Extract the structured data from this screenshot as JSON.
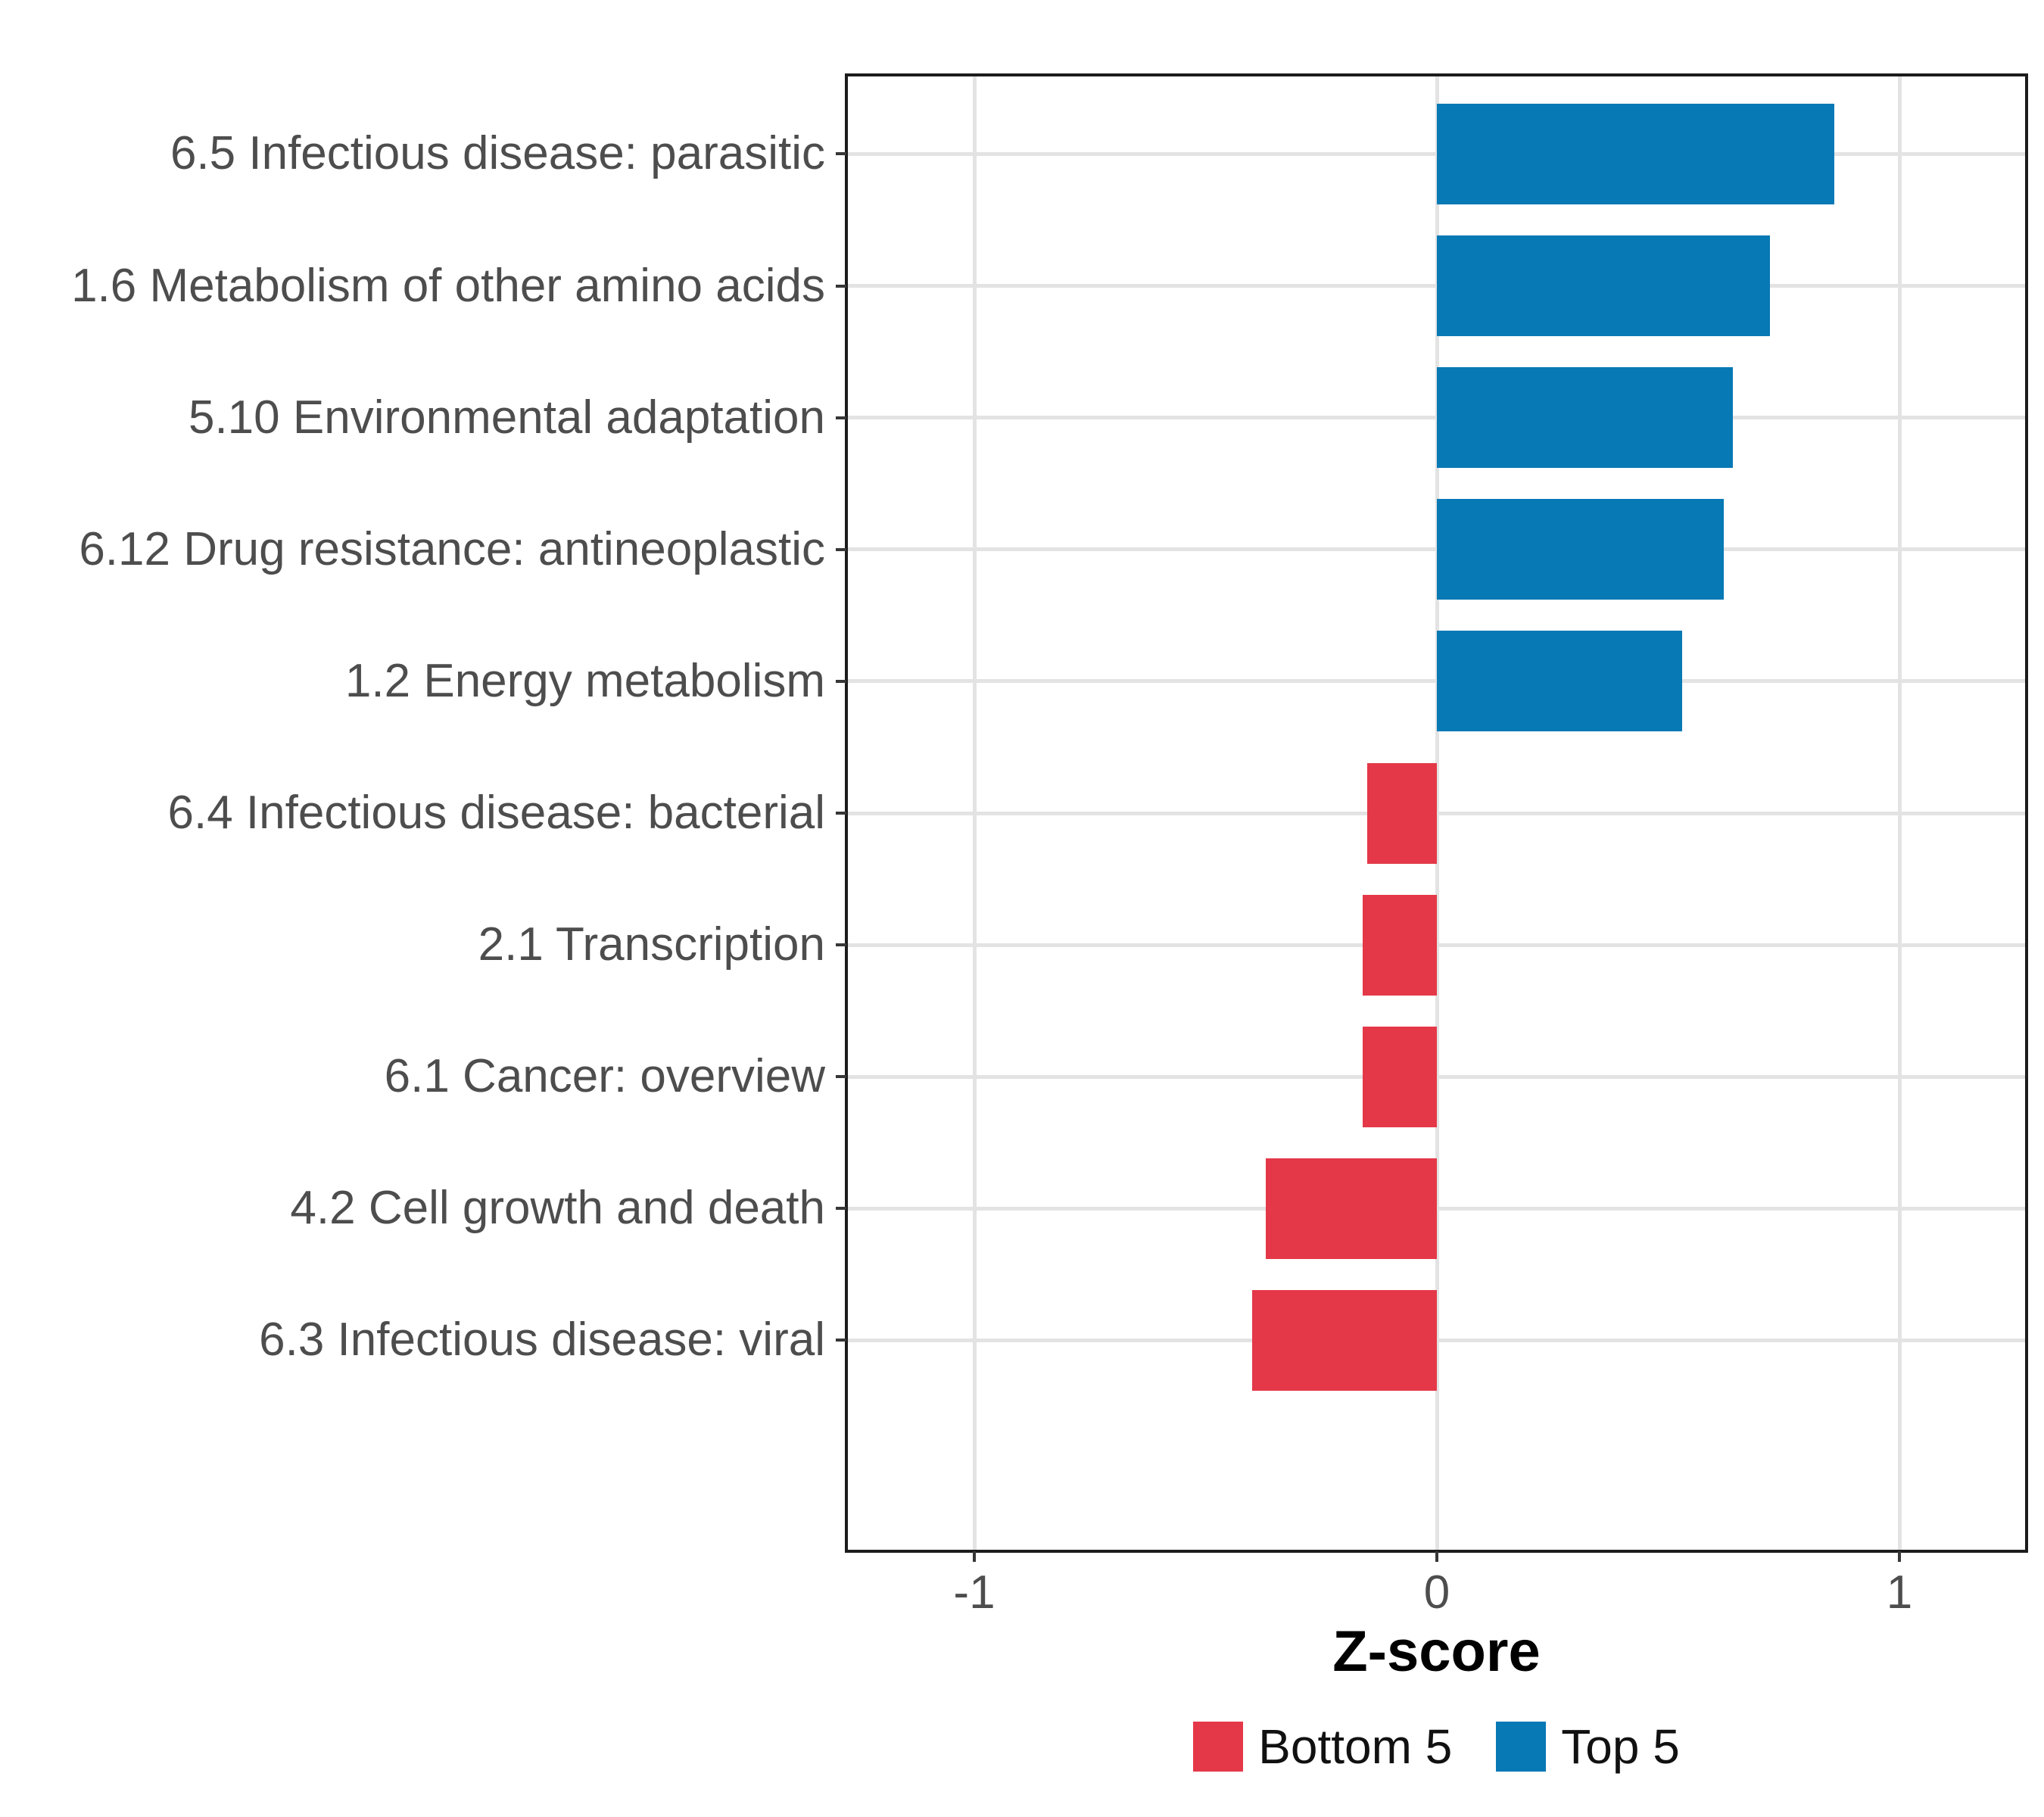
{
  "chart_data": {
    "type": "bar",
    "orientation": "horizontal",
    "title": "",
    "xlabel": "Z-score",
    "ylabel": "",
    "categories": [
      "6.5 Infectious disease: parasitic",
      "1.6 Metabolism of other amino acids",
      "5.10 Environmental adaptation",
      "6.12 Drug resistance: antineoplastic",
      "1.2 Energy metabolism",
      "6.4 Infectious disease: bacterial",
      "2.1 Transcription",
      "6.1 Cancer: overview",
      "4.2 Cell growth and death",
      "6.3 Infectious disease: viral"
    ],
    "values": [
      0.86,
      0.72,
      0.64,
      0.62,
      0.53,
      -0.15,
      -0.16,
      -0.16,
      -0.37,
      -0.4
    ],
    "group_of_category": [
      "Top 5",
      "Top 5",
      "Top 5",
      "Top 5",
      "Top 5",
      "Bottom 5",
      "Bottom 5",
      "Bottom 5",
      "Bottom 5",
      "Bottom 5"
    ],
    "xlim": [
      -1.28,
      1.28
    ],
    "xtick_values": [
      -1,
      0,
      1
    ],
    "xtick_labels": [
      "-1",
      "0",
      "1"
    ],
    "grid": "major-xy",
    "legend": {
      "position": "bottom",
      "entries": [
        {
          "label": "Bottom 5",
          "color": "#e43848"
        },
        {
          "label": "Top 5",
          "color": "#0779b5"
        }
      ]
    },
    "bar_colors": {
      "positive": "#0779b5",
      "negative": "#e43848"
    },
    "style": {
      "panel_border_color": "#1c1c1c",
      "gridline_color": "#e3e3e3",
      "axis_text_color": "#4d4d4d"
    }
  }
}
